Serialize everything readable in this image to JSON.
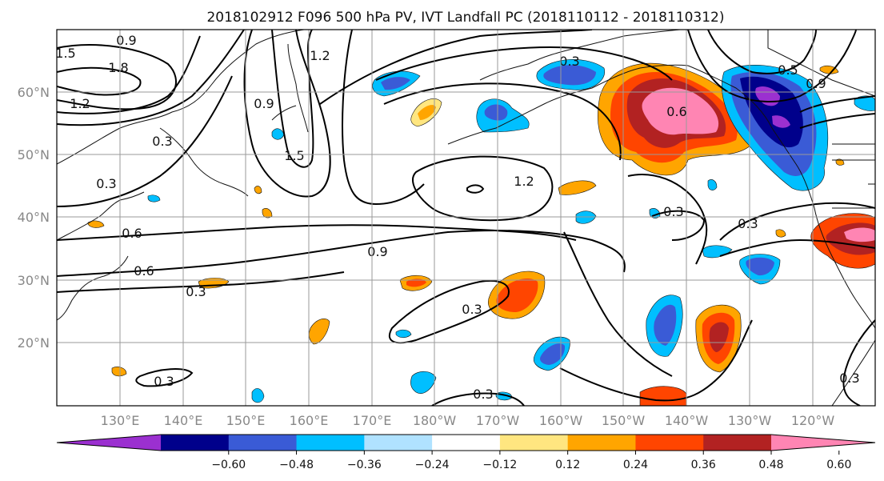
{
  "title": "2018102912 F096 500 hPa PV, IVT Landfall PC (2018110112 - 2018110312)",
  "lat_labels": [
    "60°N",
    "50°N",
    "40°N",
    "30°N",
    "20°N"
  ],
  "lon_labels": [
    "130°E",
    "140°E",
    "150°E",
    "160°E",
    "170°E",
    "180°W",
    "170°W",
    "160°W",
    "150°W",
    "140°W",
    "130°W",
    "120°W"
  ],
  "colorbar": {
    "colors": [
      "#9b30d0",
      "#00008b",
      "#3a5bd6",
      "#00bfff",
      "#b0e2ff",
      "#ffffff",
      "#ffe680",
      "#ffa500",
      "#ff4500",
      "#b22222",
      "#ff85b3"
    ],
    "tick_labels": [
      "−0.60",
      "−0.48",
      "−0.36",
      "−0.24",
      "−0.12",
      "0.12",
      "0.24",
      "0.36",
      "0.48",
      "0.60"
    ]
  },
  "contour_labels": [
    "0.9",
    "1.5",
    "1.8",
    "1.2",
    "0.3",
    "0.3",
    "0.6",
    "0.6",
    "0.3",
    "1.5",
    "0.9",
    "1.2",
    "0.9",
    "1.2",
    "0.3",
    "0.3",
    "0.3",
    "0.3",
    "0.6",
    "0.5",
    "0.9",
    "0.3",
    "0.3",
    "0.3"
  ]
}
